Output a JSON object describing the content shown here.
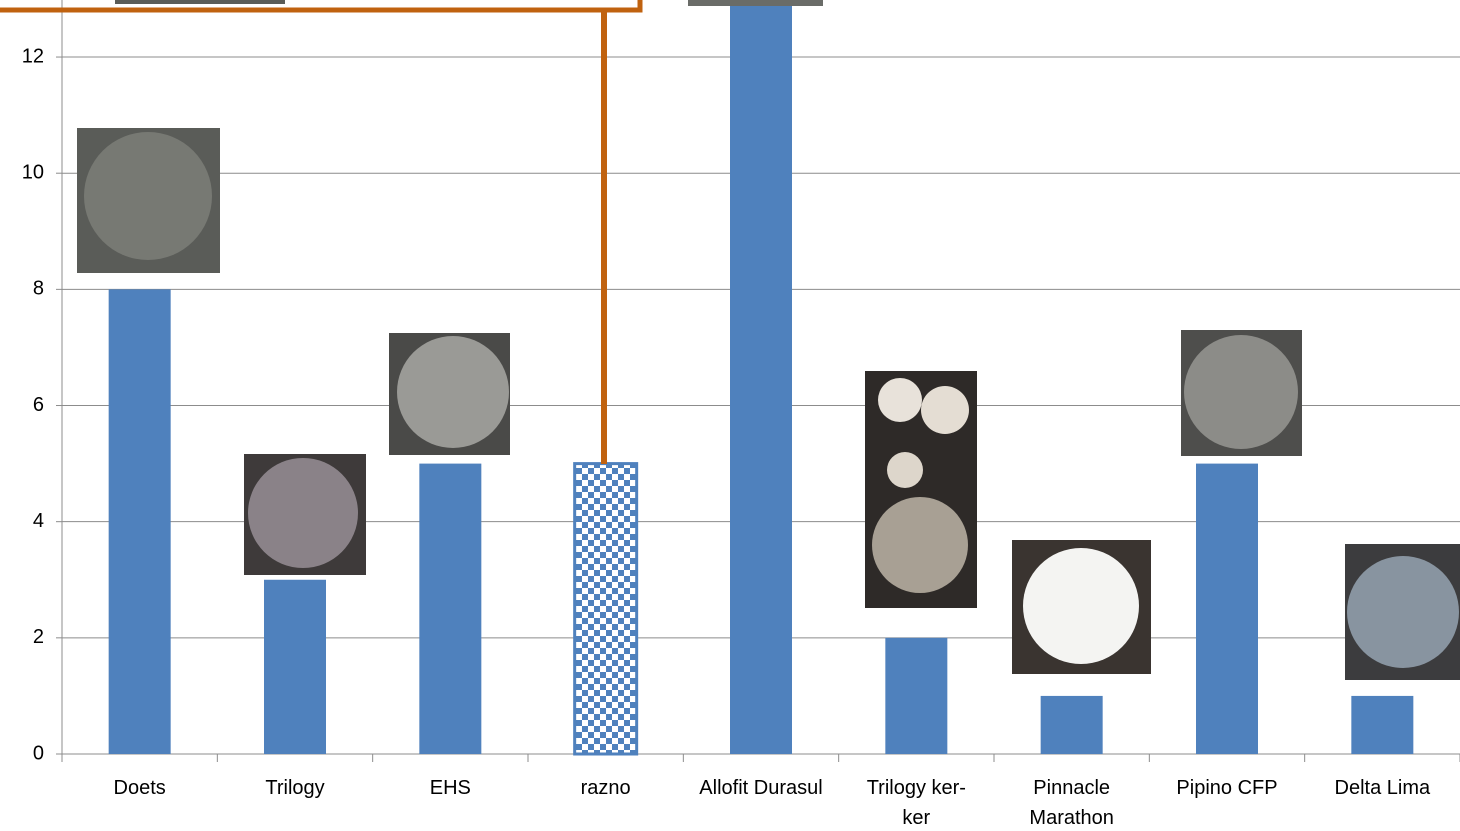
{
  "chart_data": {
    "type": "bar",
    "categories": [
      "Doets",
      "Trilogy",
      "EHS",
      "razno",
      "Allofit Durasul",
      "Trilogy ker-\nker",
      "Pinnacle\nMarathon",
      "Pipino CFP",
      "Delta Lima"
    ],
    "values": [
      8,
      3,
      5,
      5,
      14,
      2,
      1,
      5,
      1
    ],
    "color": "#4f81bd",
    "pattern_index": 3,
    "ylim": [
      0,
      14
    ],
    "yticks": [
      0,
      2,
      4,
      6,
      8,
      10,
      12
    ],
    "grid": true
  }
}
